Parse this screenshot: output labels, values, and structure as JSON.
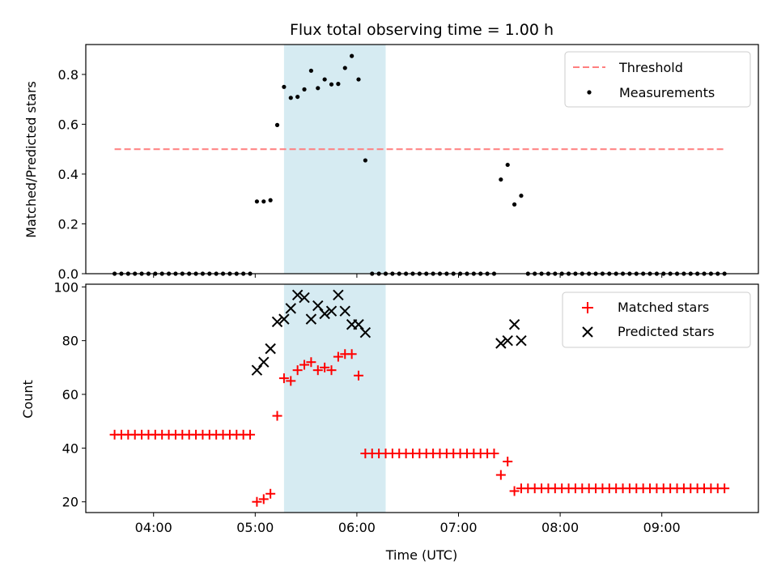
{
  "title": "Flux total observing time = 1.00 h",
  "colors": {
    "threshold": "#ff7f7f",
    "measurement": "#000000",
    "matched": "#ff0000",
    "predicted": "#000000",
    "span_fill": "#add8e6"
  },
  "chart_data": [
    {
      "type": "scatter",
      "panel": "top",
      "ylabel": "Matched/Predicted stars",
      "ylim": [
        0,
        0.92
      ],
      "yticks": [
        0.0,
        0.2,
        0.4,
        0.6,
        0.8
      ],
      "ytick_labels": [
        "0.0",
        "0.2",
        "0.4",
        "0.6",
        "0.8"
      ],
      "xlim": [
        "03:20",
        "09:57"
      ],
      "highlight_span": [
        "05:17",
        "06:17"
      ],
      "legend_position": "top-right",
      "threshold": {
        "name": "Threshold",
        "value": 0.5,
        "x_range": [
          "03:37",
          "09:37"
        ],
        "style": "dashed"
      },
      "measurements": {
        "name": "Measurements",
        "points": [
          [
            "03:37",
            0.0
          ],
          [
            "03:41",
            0.0
          ],
          [
            "03:45",
            0.0
          ],
          [
            "03:49",
            0.0
          ],
          [
            "03:53",
            0.0
          ],
          [
            "03:57",
            0.0
          ],
          [
            "04:01",
            0.0
          ],
          [
            "04:05",
            0.0
          ],
          [
            "04:09",
            0.0
          ],
          [
            "04:13",
            0.0
          ],
          [
            "04:17",
            0.0
          ],
          [
            "04:21",
            0.0
          ],
          [
            "04:25",
            0.0
          ],
          [
            "04:29",
            0.0
          ],
          [
            "04:33",
            0.0
          ],
          [
            "04:37",
            0.0
          ],
          [
            "04:41",
            0.0
          ],
          [
            "04:45",
            0.0
          ],
          [
            "04:49",
            0.0
          ],
          [
            "04:53",
            0.0
          ],
          [
            "04:57",
            0.0
          ],
          [
            "05:01",
            0.29
          ],
          [
            "05:05",
            0.29
          ],
          [
            "05:09",
            0.295
          ],
          [
            "05:13",
            0.597
          ],
          [
            "05:17",
            0.75
          ],
          [
            "05:21",
            0.706
          ],
          [
            "05:25",
            0.71
          ],
          [
            "05:29",
            0.74
          ],
          [
            "05:33",
            0.815
          ],
          [
            "05:37",
            0.745
          ],
          [
            "05:41",
            0.78
          ],
          [
            "05:45",
            0.76
          ],
          [
            "05:49",
            0.762
          ],
          [
            "05:53",
            0.826
          ],
          [
            "05:57",
            0.874
          ],
          [
            "06:01",
            0.78
          ],
          [
            "06:05",
            0.455
          ],
          [
            "06:09",
            0.0
          ],
          [
            "06:13",
            0.0
          ],
          [
            "06:17",
            0.0
          ],
          [
            "06:21",
            0.0
          ],
          [
            "06:25",
            0.0
          ],
          [
            "06:29",
            0.0
          ],
          [
            "06:33",
            0.0
          ],
          [
            "06:37",
            0.0
          ],
          [
            "06:41",
            0.0
          ],
          [
            "06:45",
            0.0
          ],
          [
            "06:49",
            0.0
          ],
          [
            "06:53",
            0.0
          ],
          [
            "06:57",
            0.0
          ],
          [
            "07:01",
            0.0
          ],
          [
            "07:05",
            0.0
          ],
          [
            "07:09",
            0.0
          ],
          [
            "07:13",
            0.0
          ],
          [
            "07:17",
            0.0
          ],
          [
            "07:21",
            0.0
          ],
          [
            "07:25",
            0.378
          ],
          [
            "07:29",
            0.437
          ],
          [
            "07:33",
            0.278
          ],
          [
            "07:37",
            0.313
          ],
          [
            "07:41",
            0.0
          ],
          [
            "07:45",
            0.0
          ],
          [
            "07:49",
            0.0
          ],
          [
            "07:53",
            0.0
          ],
          [
            "07:57",
            0.0
          ],
          [
            "08:01",
            0.0
          ],
          [
            "08:05",
            0.0
          ],
          [
            "08:09",
            0.0
          ],
          [
            "08:13",
            0.0
          ],
          [
            "08:17",
            0.0
          ],
          [
            "08:21",
            0.0
          ],
          [
            "08:25",
            0.0
          ],
          [
            "08:29",
            0.0
          ],
          [
            "08:33",
            0.0
          ],
          [
            "08:37",
            0.0
          ],
          [
            "08:41",
            0.0
          ],
          [
            "08:45",
            0.0
          ],
          [
            "08:49",
            0.0
          ],
          [
            "08:53",
            0.0
          ],
          [
            "08:57",
            0.0
          ],
          [
            "09:01",
            0.0
          ],
          [
            "09:05",
            0.0
          ],
          [
            "09:09",
            0.0
          ],
          [
            "09:13",
            0.0
          ],
          [
            "09:17",
            0.0
          ],
          [
            "09:21",
            0.0
          ],
          [
            "09:25",
            0.0
          ],
          [
            "09:29",
            0.0
          ],
          [
            "09:33",
            0.0
          ],
          [
            "09:37",
            0.0
          ]
        ]
      }
    },
    {
      "type": "scatter",
      "panel": "bottom",
      "xlabel": "Time (UTC)",
      "ylabel": "Count",
      "ylim": [
        16,
        101
      ],
      "yticks": [
        20,
        40,
        60,
        80,
        100
      ],
      "ytick_labels": [
        "20",
        "40",
        "60",
        "80",
        "100"
      ],
      "xlim": [
        "03:20",
        "09:57"
      ],
      "xticks": [
        "04:00",
        "05:00",
        "06:00",
        "07:00",
        "08:00",
        "09:00"
      ],
      "xtick_labels": [
        "04:00",
        "05:00",
        "06:00",
        "07:00",
        "08:00",
        "09:00"
      ],
      "highlight_span": [
        "05:17",
        "06:17"
      ],
      "legend_position": "top-right",
      "series": [
        {
          "name": "Matched stars",
          "marker": "plus",
          "points": [
            [
              "03:37",
              45
            ],
            [
              "03:41",
              45
            ],
            [
              "03:45",
              45
            ],
            [
              "03:49",
              45
            ],
            [
              "03:53",
              45
            ],
            [
              "03:57",
              45
            ],
            [
              "04:01",
              45
            ],
            [
              "04:05",
              45
            ],
            [
              "04:09",
              45
            ],
            [
              "04:13",
              45
            ],
            [
              "04:17",
              45
            ],
            [
              "04:21",
              45
            ],
            [
              "04:25",
              45
            ],
            [
              "04:29",
              45
            ],
            [
              "04:33",
              45
            ],
            [
              "04:37",
              45
            ],
            [
              "04:41",
              45
            ],
            [
              "04:45",
              45
            ],
            [
              "04:49",
              45
            ],
            [
              "04:53",
              45
            ],
            [
              "04:57",
              45
            ],
            [
              "05:01",
              20
            ],
            [
              "05:05",
              21
            ],
            [
              "05:09",
              23
            ],
            [
              "05:13",
              52
            ],
            [
              "05:17",
              66
            ],
            [
              "05:21",
              65
            ],
            [
              "05:25",
              69
            ],
            [
              "05:29",
              71
            ],
            [
              "05:33",
              72
            ],
            [
              "05:37",
              69
            ],
            [
              "05:41",
              70
            ],
            [
              "05:45",
              69
            ],
            [
              "05:49",
              74
            ],
            [
              "05:53",
              75
            ],
            [
              "05:57",
              75
            ],
            [
              "06:01",
              67
            ],
            [
              "06:05",
              38
            ],
            [
              "06:09",
              38
            ],
            [
              "06:13",
              38
            ],
            [
              "06:17",
              38
            ],
            [
              "06:21",
              38
            ],
            [
              "06:25",
              38
            ],
            [
              "06:29",
              38
            ],
            [
              "06:33",
              38
            ],
            [
              "06:37",
              38
            ],
            [
              "06:41",
              38
            ],
            [
              "06:45",
              38
            ],
            [
              "06:49",
              38
            ],
            [
              "06:53",
              38
            ],
            [
              "06:57",
              38
            ],
            [
              "07:01",
              38
            ],
            [
              "07:05",
              38
            ],
            [
              "07:09",
              38
            ],
            [
              "07:13",
              38
            ],
            [
              "07:17",
              38
            ],
            [
              "07:21",
              38
            ],
            [
              "07:25",
              30
            ],
            [
              "07:29",
              35
            ],
            [
              "07:33",
              24
            ],
            [
              "07:37",
              25
            ],
            [
              "07:41",
              25
            ],
            [
              "07:45",
              25
            ],
            [
              "07:49",
              25
            ],
            [
              "07:53",
              25
            ],
            [
              "07:57",
              25
            ],
            [
              "08:01",
              25
            ],
            [
              "08:05",
              25
            ],
            [
              "08:09",
              25
            ],
            [
              "08:13",
              25
            ],
            [
              "08:17",
              25
            ],
            [
              "08:21",
              25
            ],
            [
              "08:25",
              25
            ],
            [
              "08:29",
              25
            ],
            [
              "08:33",
              25
            ],
            [
              "08:37",
              25
            ],
            [
              "08:41",
              25
            ],
            [
              "08:45",
              25
            ],
            [
              "08:49",
              25
            ],
            [
              "08:53",
              25
            ],
            [
              "08:57",
              25
            ],
            [
              "09:01",
              25
            ],
            [
              "09:05",
              25
            ],
            [
              "09:09",
              25
            ],
            [
              "09:13",
              25
            ],
            [
              "09:17",
              25
            ],
            [
              "09:21",
              25
            ],
            [
              "09:25",
              25
            ],
            [
              "09:29",
              25
            ],
            [
              "09:33",
              25
            ],
            [
              "09:37",
              25
            ]
          ]
        },
        {
          "name": "Predicted stars",
          "marker": "x",
          "points": [
            [
              "05:01",
              69
            ],
            [
              "05:05",
              72
            ],
            [
              "05:09",
              77
            ],
            [
              "05:13",
              87
            ],
            [
              "05:17",
              88
            ],
            [
              "05:21",
              92
            ],
            [
              "05:25",
              97
            ],
            [
              "05:29",
              96
            ],
            [
              "05:33",
              88
            ],
            [
              "05:37",
              93
            ],
            [
              "05:41",
              90
            ],
            [
              "05:45",
              91
            ],
            [
              "05:49",
              97
            ],
            [
              "05:53",
              91
            ],
            [
              "05:57",
              86
            ],
            [
              "06:01",
              86
            ],
            [
              "06:05",
              83
            ],
            [
              "07:25",
              79
            ],
            [
              "07:29",
              80
            ],
            [
              "07:33",
              86
            ],
            [
              "07:37",
              80
            ]
          ]
        }
      ]
    }
  ]
}
